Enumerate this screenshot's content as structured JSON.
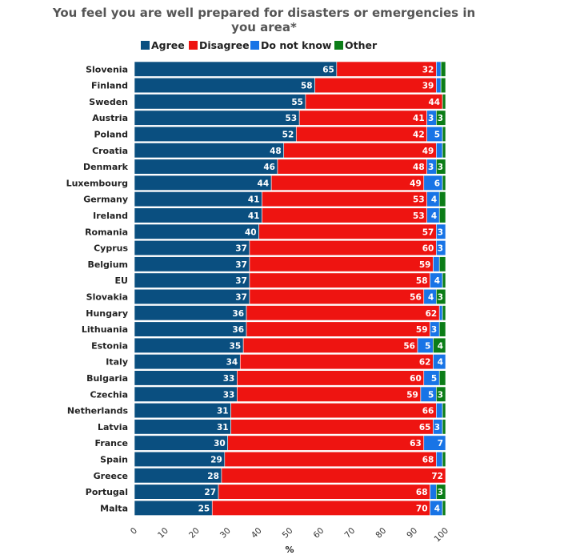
{
  "chart_data": {
    "type": "bar",
    "orientation": "horizontal",
    "stacked": true,
    "title": "You feel you are well prepared for disasters or emergencies in you area*",
    "title_lines": [
      "You feel you are well prepared for disasters or emergencies in",
      "you area*"
    ],
    "xlabel": "%",
    "ylabel": "",
    "xlim": [
      0,
      100
    ],
    "xticks": [
      0,
      10,
      20,
      30,
      40,
      50,
      60,
      70,
      80,
      90,
      100
    ],
    "grid": false,
    "legend_position": "top",
    "categories": [
      "Slovenia",
      "Finland",
      "Sweden",
      "Austria",
      "Poland",
      "Croatia",
      "Denmark",
      "Luxembourg",
      "Germany",
      "Ireland",
      "Romania",
      "Cyprus",
      "Belgium",
      "EU",
      "Slovakia",
      "Hungary",
      "Lithuania",
      "Estonia",
      "Italy",
      "Bulgaria",
      "Czechia",
      "Netherlands",
      "Latvia",
      "France",
      "Spain",
      "Greece",
      "Portugal",
      "Malta"
    ],
    "series": [
      {
        "name": "Agree",
        "color": "#0a4f80",
        "values": [
          65,
          58,
          55,
          53,
          52,
          48,
          46,
          44,
          41,
          41,
          40,
          37,
          37,
          37,
          37,
          36,
          36,
          35,
          34,
          33,
          33,
          31,
          31,
          30,
          29,
          28,
          27,
          25
        ]
      },
      {
        "name": "Disagree",
        "color": "#ee1411",
        "values": [
          32,
          39,
          44,
          41,
          42,
          49,
          48,
          49,
          53,
          53,
          57,
          60,
          59,
          58,
          56,
          62,
          59,
          56,
          62,
          60,
          59,
          66,
          65,
          63,
          68,
          72,
          68,
          70
        ]
      },
      {
        "name": "Do not know",
        "color": "#1874e6",
        "values": [
          1.5,
          1.5,
          0,
          3,
          5,
          2,
          3,
          6,
          4,
          4,
          3,
          3,
          2,
          4,
          4,
          1,
          3,
          5,
          4,
          5,
          5,
          2,
          3,
          7,
          2,
          0,
          2,
          4
        ]
      },
      {
        "name": "Other",
        "color": "#0b7d17",
        "values": [
          1.5,
          1.5,
          1,
          3,
          1,
          1,
          3,
          1,
          2,
          2,
          0,
          0,
          2,
          1,
          3,
          1,
          2,
          4,
          0,
          2,
          3,
          1,
          1,
          0,
          1,
          0,
          3,
          1
        ]
      }
    ]
  }
}
